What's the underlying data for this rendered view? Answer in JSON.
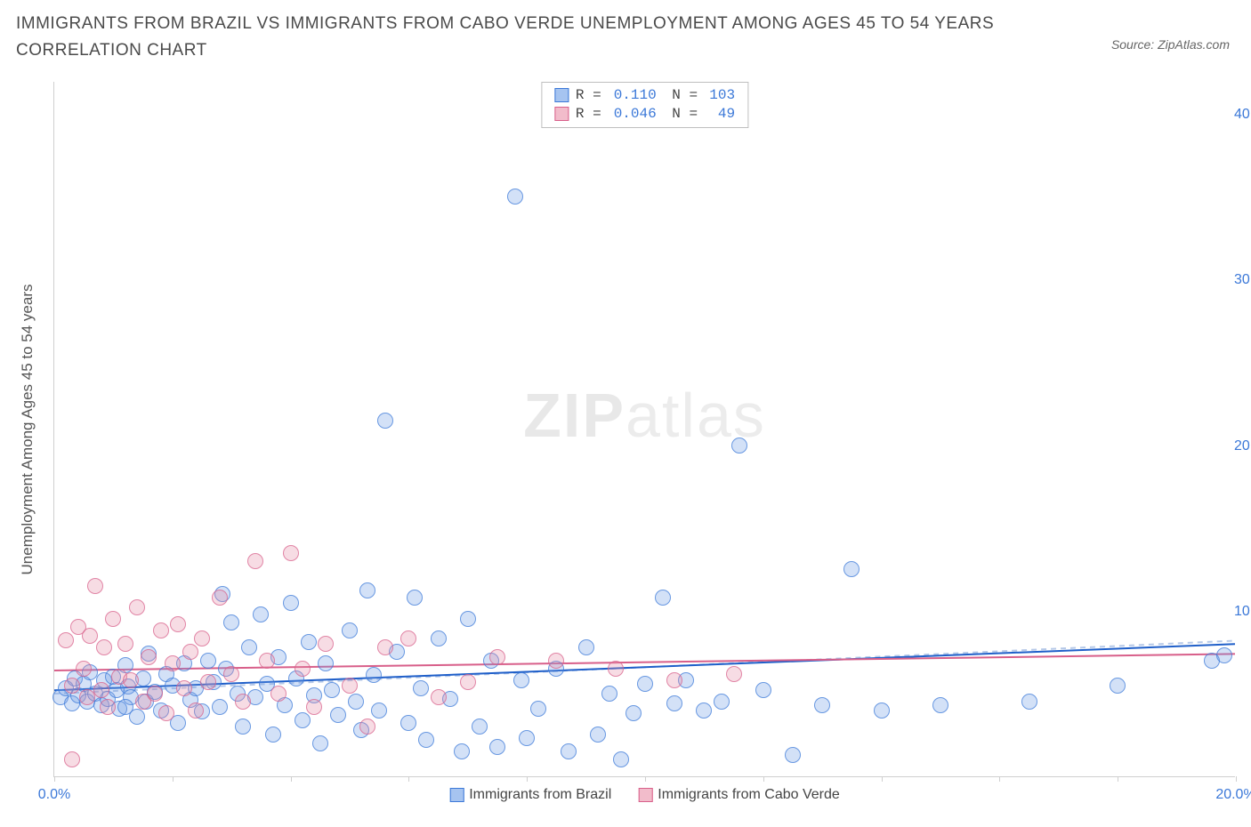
{
  "title": "IMMIGRANTS FROM BRAZIL VS IMMIGRANTS FROM CABO VERDE UNEMPLOYMENT AMONG AGES 45 TO 54 YEARS CORRELATION CHART",
  "source": "Source: ZipAtlas.com",
  "watermark_zip": "ZIP",
  "watermark_atlas": "atlas",
  "chart": {
    "type": "scatter",
    "xlim": [
      0,
      20
    ],
    "ylim": [
      0,
      42
    ],
    "xticks": [
      0,
      2,
      4,
      6,
      8,
      10,
      12,
      14,
      16,
      18,
      20
    ],
    "xtick_labels": {
      "0": "0.0%",
      "20": "20.0%"
    },
    "yticks": [
      10,
      20,
      30,
      40
    ],
    "ytick_labels": {
      "10": "10.0%",
      "20": "20.0%",
      "30": "30.0%",
      "40": "40.0%"
    },
    "yaxis_label": "Unemployment Among Ages 45 to 54 years",
    "background_color": "#ffffff",
    "axis_color": "#cfcfcf",
    "tick_label_color": "#3b78d8",
    "marker_size": 18,
    "marker_opacity_fill": 0.3,
    "marker_opacity_stroke": 0.7,
    "series": [
      {
        "name": "Immigrants from Brazil",
        "color_fill": "#6d9be6",
        "color_stroke": "#3b78d8",
        "stat_R": "0.110",
        "stat_N": "103",
        "regression": {
          "y_at_x0": 5.2,
          "y_at_x20": 8.0,
          "color": "#1f5fc9",
          "width": 2
        },
        "points": [
          [
            0.1,
            4.8
          ],
          [
            0.2,
            5.3
          ],
          [
            0.3,
            4.4
          ],
          [
            0.35,
            5.9
          ],
          [
            0.4,
            4.9
          ],
          [
            0.5,
            5.6
          ],
          [
            0.55,
            4.5
          ],
          [
            0.6,
            6.3
          ],
          [
            0.7,
            5.0
          ],
          [
            0.8,
            4.3
          ],
          [
            0.85,
            5.8
          ],
          [
            0.9,
            4.7
          ],
          [
            1.0,
            6.0
          ],
          [
            1.05,
            5.2
          ],
          [
            1.1,
            4.1
          ],
          [
            1.2,
            6.7
          ],
          [
            1.25,
            5.4
          ],
          [
            1.3,
            4.8
          ],
          [
            1.4,
            3.6
          ],
          [
            1.5,
            5.9
          ],
          [
            1.55,
            4.5
          ],
          [
            1.6,
            7.4
          ],
          [
            1.7,
            5.1
          ],
          [
            1.8,
            4.0
          ],
          [
            1.9,
            6.2
          ],
          [
            2.0,
            5.5
          ],
          [
            2.1,
            3.2
          ],
          [
            2.2,
            6.8
          ],
          [
            2.3,
            4.6
          ],
          [
            2.4,
            5.3
          ],
          [
            2.5,
            3.9
          ],
          [
            2.6,
            7.0
          ],
          [
            2.7,
            5.7
          ],
          [
            2.8,
            4.2
          ],
          [
            2.85,
            11.0
          ],
          [
            2.9,
            6.5
          ],
          [
            3.0,
            9.3
          ],
          [
            3.1,
            5.0
          ],
          [
            3.2,
            3.0
          ],
          [
            3.3,
            7.8
          ],
          [
            3.4,
            4.8
          ],
          [
            3.5,
            9.8
          ],
          [
            3.6,
            5.6
          ],
          [
            3.7,
            2.5
          ],
          [
            3.8,
            7.2
          ],
          [
            3.9,
            4.3
          ],
          [
            4.0,
            10.5
          ],
          [
            4.1,
            5.9
          ],
          [
            4.2,
            3.4
          ],
          [
            4.3,
            8.1
          ],
          [
            4.4,
            4.9
          ],
          [
            4.5,
            2.0
          ],
          [
            4.6,
            6.8
          ],
          [
            4.7,
            5.2
          ],
          [
            4.8,
            3.7
          ],
          [
            5.0,
            8.8
          ],
          [
            5.1,
            4.5
          ],
          [
            5.2,
            2.8
          ],
          [
            5.3,
            11.2
          ],
          [
            5.4,
            6.1
          ],
          [
            5.5,
            4.0
          ],
          [
            5.6,
            21.5
          ],
          [
            5.8,
            7.5
          ],
          [
            6.0,
            3.2
          ],
          [
            6.1,
            10.8
          ],
          [
            6.2,
            5.3
          ],
          [
            6.3,
            2.2
          ],
          [
            6.5,
            8.3
          ],
          [
            6.7,
            4.7
          ],
          [
            6.9,
            1.5
          ],
          [
            7.0,
            9.5
          ],
          [
            7.2,
            3.0
          ],
          [
            7.4,
            7.0
          ],
          [
            7.5,
            1.8
          ],
          [
            7.8,
            35.0
          ],
          [
            7.9,
            5.8
          ],
          [
            8.0,
            2.3
          ],
          [
            8.2,
            4.1
          ],
          [
            8.5,
            6.5
          ],
          [
            8.7,
            1.5
          ],
          [
            9.0,
            7.8
          ],
          [
            9.2,
            2.5
          ],
          [
            9.4,
            5.0
          ],
          [
            9.6,
            1.0
          ],
          [
            9.8,
            3.8
          ],
          [
            10.0,
            5.6
          ],
          [
            10.3,
            10.8
          ],
          [
            10.5,
            4.4
          ],
          [
            10.7,
            5.8
          ],
          [
            11.0,
            4.0
          ],
          [
            11.3,
            4.5
          ],
          [
            11.6,
            20.0
          ],
          [
            12.0,
            5.2
          ],
          [
            12.5,
            1.3
          ],
          [
            13.0,
            4.3
          ],
          [
            13.5,
            12.5
          ],
          [
            14.0,
            4.0
          ],
          [
            15.0,
            4.3
          ],
          [
            16.5,
            4.5
          ],
          [
            18.0,
            5.5
          ],
          [
            19.6,
            7.0
          ],
          [
            19.8,
            7.3
          ],
          [
            1.2,
            4.2
          ]
        ]
      },
      {
        "name": "Immigrants from Cabo Verde",
        "color_fill": "#e68aa5",
        "color_stroke": "#d85f8a",
        "stat_R": "0.046",
        "stat_N": "49",
        "regression": {
          "y_at_x0": 6.4,
          "y_at_x20": 7.4,
          "color": "#d85f8a",
          "width": 2
        },
        "points": [
          [
            0.2,
            8.2
          ],
          [
            0.3,
            5.5
          ],
          [
            0.4,
            9.0
          ],
          [
            0.5,
            6.5
          ],
          [
            0.55,
            4.8
          ],
          [
            0.6,
            8.5
          ],
          [
            0.7,
            11.5
          ],
          [
            0.8,
            5.2
          ],
          [
            0.85,
            7.8
          ],
          [
            0.9,
            4.2
          ],
          [
            1.0,
            9.5
          ],
          [
            1.1,
            6.0
          ],
          [
            1.2,
            8.0
          ],
          [
            1.3,
            5.8
          ],
          [
            1.4,
            10.2
          ],
          [
            1.5,
            4.5
          ],
          [
            1.6,
            7.2
          ],
          [
            1.7,
            5.0
          ],
          [
            1.8,
            8.8
          ],
          [
            1.9,
            3.8
          ],
          [
            2.0,
            6.8
          ],
          [
            2.1,
            9.2
          ],
          [
            2.2,
            5.3
          ],
          [
            2.3,
            7.5
          ],
          [
            2.4,
            4.0
          ],
          [
            2.5,
            8.3
          ],
          [
            2.6,
            5.7
          ],
          [
            2.8,
            10.8
          ],
          [
            3.0,
            6.2
          ],
          [
            3.2,
            4.5
          ],
          [
            3.4,
            13.0
          ],
          [
            3.6,
            7.0
          ],
          [
            3.8,
            5.0
          ],
          [
            4.0,
            13.5
          ],
          [
            4.2,
            6.5
          ],
          [
            4.4,
            4.2
          ],
          [
            4.6,
            8.0
          ],
          [
            5.0,
            5.5
          ],
          [
            5.3,
            3.0
          ],
          [
            5.6,
            7.8
          ],
          [
            6.0,
            8.3
          ],
          [
            6.5,
            4.8
          ],
          [
            7.0,
            5.7
          ],
          [
            7.5,
            7.2
          ],
          [
            8.5,
            7.0
          ],
          [
            9.5,
            6.5
          ],
          [
            10.5,
            5.8
          ],
          [
            11.5,
            6.2
          ],
          [
            0.3,
            1.0
          ]
        ]
      }
    ],
    "legend_bottom": [
      {
        "label": "Immigrants from Brazil",
        "fill": "#a6c4f0",
        "stroke": "#3b78d8"
      },
      {
        "label": "Immigrants from Cabo Verde",
        "fill": "#f2bccb",
        "stroke": "#d85f8a"
      }
    ],
    "legend_stats_swatches": [
      {
        "fill": "#a6c4f0",
        "stroke": "#3b78d8"
      },
      {
        "fill": "#f2bccb",
        "stroke": "#d85f8a"
      }
    ]
  }
}
